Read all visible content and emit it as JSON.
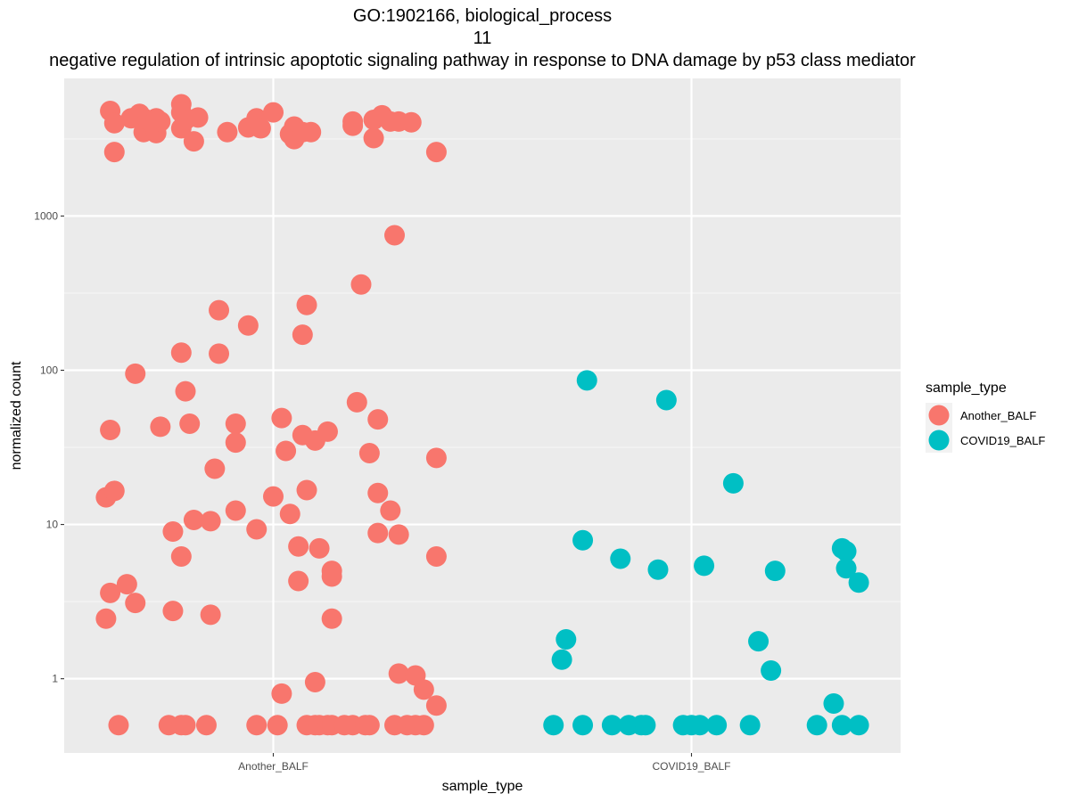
{
  "chart_data": {
    "type": "scatter",
    "title_lines": [
      "GO:1902166, biological_process",
      "11",
      "negative regulation of intrinsic apoptotic signaling pathway in response to DNA damage by p53 class mediator"
    ],
    "xlabel": "sample_type",
    "ylabel": "normalized count",
    "y_scale": "log10",
    "ylim": [
      0.33,
      7800
    ],
    "y_ticks": [
      1,
      10,
      100,
      1000
    ],
    "y_tick_labels": [
      "1",
      "10",
      "100",
      "1000"
    ],
    "categories": [
      "Another_BALF",
      "COVID19_BALF"
    ],
    "grid": true,
    "legend": {
      "title": "sample_type",
      "position": "right"
    },
    "series": [
      {
        "name": "Another_BALF",
        "color": "#F8766D",
        "points": [
          {
            "j": -0.39,
            "y": 4800
          },
          {
            "j": -0.38,
            "y": 4000
          },
          {
            "j": -0.34,
            "y": 4300
          },
          {
            "j": -0.32,
            "y": 4600
          },
          {
            "j": -0.31,
            "y": 3500
          },
          {
            "j": -0.3,
            "y": 4200
          },
          {
            "j": -0.28,
            "y": 3450
          },
          {
            "j": -0.27,
            "y": 4100
          },
          {
            "j": -0.28,
            "y": 4300
          },
          {
            "j": -0.22,
            "y": 5300
          },
          {
            "j": -0.22,
            "y": 4700
          },
          {
            "j": -0.38,
            "y": 2600
          },
          {
            "j": -0.22,
            "y": 3700
          },
          {
            "j": -0.21,
            "y": 4200
          },
          {
            "j": -0.19,
            "y": 3050
          },
          {
            "j": -0.18,
            "y": 4350
          },
          {
            "j": -0.11,
            "y": 3500
          },
          {
            "j": -0.06,
            "y": 3750
          },
          {
            "j": -0.04,
            "y": 4300
          },
          {
            "j": -0.03,
            "y": 3700
          },
          {
            "j": 0.0,
            "y": 4700
          },
          {
            "j": 0.04,
            "y": 3400
          },
          {
            "j": 0.05,
            "y": 3800
          },
          {
            "j": 0.05,
            "y": 3150
          },
          {
            "j": 0.07,
            "y": 3500
          },
          {
            "j": 0.09,
            "y": 3500
          },
          {
            "j": 0.19,
            "y": 4100
          },
          {
            "j": 0.19,
            "y": 3850
          },
          {
            "j": 0.24,
            "y": 3200
          },
          {
            "j": 0.24,
            "y": 4200
          },
          {
            "j": 0.26,
            "y": 4500
          },
          {
            "j": 0.28,
            "y": 4100
          },
          {
            "j": 0.3,
            "y": 4100
          },
          {
            "j": 0.33,
            "y": 4050
          },
          {
            "j": 0.39,
            "y": 2600
          },
          {
            "j": 0.29,
            "y": 750
          },
          {
            "j": 0.21,
            "y": 360
          },
          {
            "j": -0.13,
            "y": 245
          },
          {
            "j": -0.06,
            "y": 195
          },
          {
            "j": 0.08,
            "y": 265
          },
          {
            "j": 0.07,
            "y": 170
          },
          {
            "j": -0.22,
            "y": 130
          },
          {
            "j": -0.13,
            "y": 128
          },
          {
            "j": -0.33,
            "y": 95
          },
          {
            "j": -0.21,
            "y": 73
          },
          {
            "j": -0.39,
            "y": 41
          },
          {
            "j": -0.27,
            "y": 43
          },
          {
            "j": -0.2,
            "y": 45
          },
          {
            "j": -0.09,
            "y": 45
          },
          {
            "j": -0.09,
            "y": 34
          },
          {
            "j": -0.14,
            "y": 23
          },
          {
            "j": 0.02,
            "y": 49
          },
          {
            "j": 0.03,
            "y": 30
          },
          {
            "j": 0.07,
            "y": 38
          },
          {
            "j": 0.1,
            "y": 35
          },
          {
            "j": 0.13,
            "y": 40
          },
          {
            "j": 0.2,
            "y": 62
          },
          {
            "j": 0.25,
            "y": 48
          },
          {
            "j": 0.23,
            "y": 29
          },
          {
            "j": 0.39,
            "y": 27
          },
          {
            "j": -0.4,
            "y": 15
          },
          {
            "j": -0.38,
            "y": 16.5
          },
          {
            "j": -0.24,
            "y": 9
          },
          {
            "j": -0.22,
            "y": 6.2
          },
          {
            "j": -0.19,
            "y": 10.7
          },
          {
            "j": -0.15,
            "y": 10.5
          },
          {
            "j": -0.09,
            "y": 12.3
          },
          {
            "j": -0.04,
            "y": 9.3
          },
          {
            "j": 0.0,
            "y": 15.2
          },
          {
            "j": 0.04,
            "y": 11.7
          },
          {
            "j": 0.08,
            "y": 16.7
          },
          {
            "j": 0.06,
            "y": 7.2
          },
          {
            "j": 0.11,
            "y": 7
          },
          {
            "j": 0.25,
            "y": 16
          },
          {
            "j": 0.28,
            "y": 12.3
          },
          {
            "j": 0.25,
            "y": 8.8
          },
          {
            "j": 0.3,
            "y": 8.6
          },
          {
            "j": 0.39,
            "y": 6.2
          },
          {
            "j": -0.39,
            "y": 3.6
          },
          {
            "j": -0.35,
            "y": 4.1
          },
          {
            "j": -0.33,
            "y": 3.1
          },
          {
            "j": -0.24,
            "y": 2.75
          },
          {
            "j": -0.15,
            "y": 2.6
          },
          {
            "j": -0.4,
            "y": 2.45
          },
          {
            "j": 0.06,
            "y": 4.3
          },
          {
            "j": 0.14,
            "y": 5.0
          },
          {
            "j": 0.14,
            "y": 4.6
          },
          {
            "j": 0.14,
            "y": 2.45
          },
          {
            "j": 0.02,
            "y": 0.8
          },
          {
            "j": 0.1,
            "y": 0.95
          },
          {
            "j": 0.3,
            "y": 1.08
          },
          {
            "j": 0.34,
            "y": 1.05
          },
          {
            "j": 0.36,
            "y": 0.85
          },
          {
            "j": 0.39,
            "y": 0.67
          },
          {
            "j": -0.37,
            "y": 0.5
          },
          {
            "j": -0.25,
            "y": 0.5
          },
          {
            "j": -0.22,
            "y": 0.5
          },
          {
            "j": -0.21,
            "y": 0.5
          },
          {
            "j": -0.16,
            "y": 0.5
          },
          {
            "j": -0.04,
            "y": 0.5
          },
          {
            "j": 0.01,
            "y": 0.5
          },
          {
            "j": 0.08,
            "y": 0.5
          },
          {
            "j": 0.1,
            "y": 0.5
          },
          {
            "j": 0.11,
            "y": 0.5
          },
          {
            "j": 0.13,
            "y": 0.5
          },
          {
            "j": 0.14,
            "y": 0.5
          },
          {
            "j": 0.17,
            "y": 0.5
          },
          {
            "j": 0.19,
            "y": 0.5
          },
          {
            "j": 0.22,
            "y": 0.5
          },
          {
            "j": 0.23,
            "y": 0.5
          },
          {
            "j": 0.29,
            "y": 0.5
          },
          {
            "j": 0.32,
            "y": 0.5
          },
          {
            "j": 0.34,
            "y": 0.5
          },
          {
            "j": 0.36,
            "y": 0.5
          }
        ]
      },
      {
        "name": "COVID19_BALF",
        "color": "#00BFC4",
        "points": [
          {
            "j": -0.25,
            "y": 86
          },
          {
            "j": -0.06,
            "y": 64
          },
          {
            "j": 0.1,
            "y": 18.5
          },
          {
            "j": -0.26,
            "y": 7.9
          },
          {
            "j": -0.17,
            "y": 6.0
          },
          {
            "j": -0.08,
            "y": 5.1
          },
          {
            "j": 0.03,
            "y": 5.4
          },
          {
            "j": 0.2,
            "y": 5.0
          },
          {
            "j": 0.36,
            "y": 7.0
          },
          {
            "j": 0.37,
            "y": 6.7
          },
          {
            "j": 0.37,
            "y": 5.2
          },
          {
            "j": 0.4,
            "y": 4.2
          },
          {
            "j": -0.3,
            "y": 1.8
          },
          {
            "j": -0.31,
            "y": 1.33
          },
          {
            "j": 0.16,
            "y": 1.75
          },
          {
            "j": 0.19,
            "y": 1.13
          },
          {
            "j": 0.34,
            "y": 0.69
          },
          {
            "j": -0.33,
            "y": 0.5
          },
          {
            "j": -0.26,
            "y": 0.5
          },
          {
            "j": -0.19,
            "y": 0.5
          },
          {
            "j": -0.15,
            "y": 0.5
          },
          {
            "j": -0.12,
            "y": 0.5
          },
          {
            "j": -0.11,
            "y": 0.5
          },
          {
            "j": -0.02,
            "y": 0.5
          },
          {
            "j": 0.0,
            "y": 0.5
          },
          {
            "j": 0.02,
            "y": 0.5
          },
          {
            "j": 0.06,
            "y": 0.5
          },
          {
            "j": 0.14,
            "y": 0.5
          },
          {
            "j": 0.3,
            "y": 0.5
          },
          {
            "j": 0.36,
            "y": 0.5
          },
          {
            "j": 0.4,
            "y": 0.5
          }
        ]
      }
    ]
  }
}
